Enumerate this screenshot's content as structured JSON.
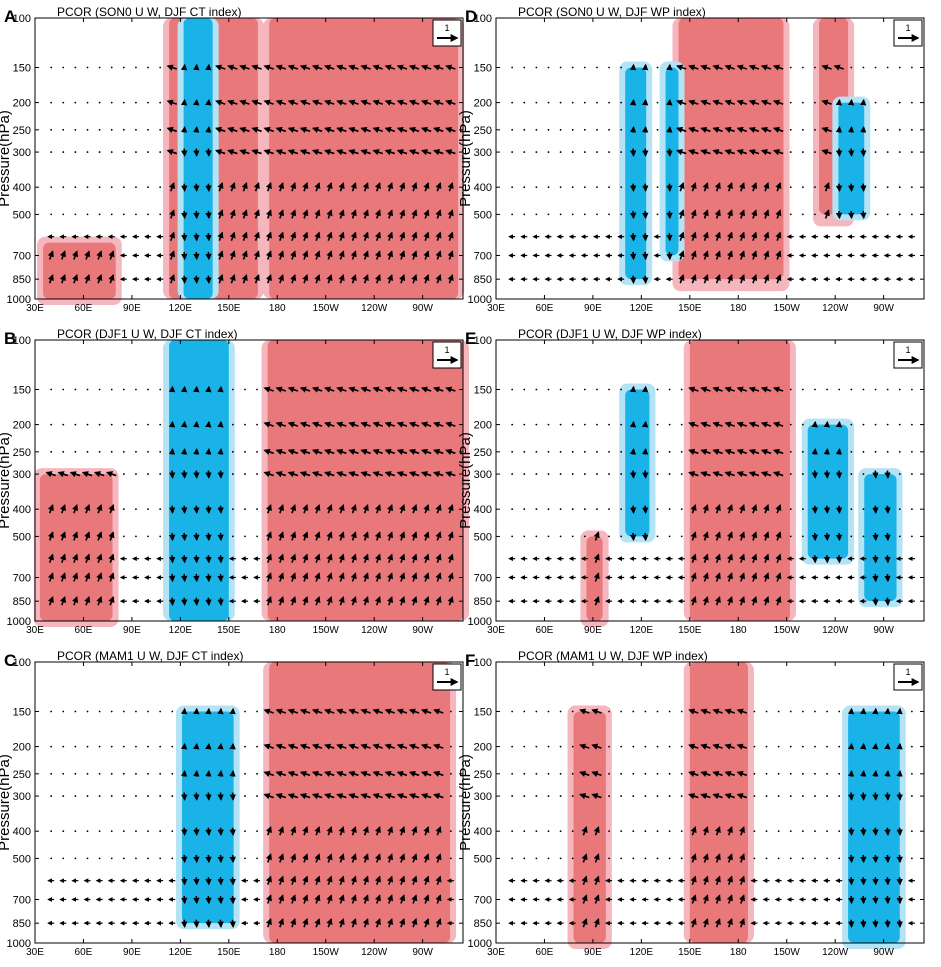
{
  "figure": {
    "colors": {
      "positive_strong": "#e9787b",
      "positive_weak": "#f6b6bd",
      "negative_strong": "#1ab3e8",
      "negative_weak": "#b5e3f6",
      "vector": "#000000"
    },
    "ylabel": "Pressure(hPa)",
    "pressure_ticks": [
      "100",
      "150",
      "200",
      "250",
      "300",
      "400",
      "500",
      "700",
      "850",
      "1000"
    ],
    "lon_ticks": [
      "30E",
      "60E",
      "90E",
      "120E",
      "150E",
      "180",
      "150W",
      "120W",
      "90W"
    ],
    "ref_vector_label": "1",
    "panels": [
      {
        "letter": "A",
        "title": "PCOR (SON0 U W, DJF CT index)",
        "pos": [
          [
            35,
            80,
            1000,
            630
          ],
          [
            113,
            168,
            1000,
            100
          ],
          [
            175,
            292,
            1000,
            100
          ]
        ],
        "neg": [
          [
            122,
            140,
            1000,
            100
          ]
        ]
      },
      {
        "letter": "D",
        "title": "PCOR (SON0 U W, DJF WP index)",
        "pos": [
          [
            143,
            208,
            850,
            100
          ],
          [
            230,
            248,
            500,
            100
          ]
        ],
        "neg": [
          [
            110,
            123,
            850,
            150
          ],
          [
            135,
            143,
            700,
            150
          ],
          [
            242,
            258,
            500,
            200
          ]
        ]
      },
      {
        "letter": "B",
        "title": "PCOR (DJF1 U W, DJF CT index)",
        "pos": [
          [
            33,
            78,
            1000,
            300
          ],
          [
            174,
            295,
            1000,
            100
          ]
        ],
        "neg": [
          [
            113,
            150,
            1000,
            100
          ]
        ]
      },
      {
        "letter": "E",
        "title": "PCOR (DJF1 U W, DJF WP index)",
        "pos": [
          [
            86,
            96,
            1000,
            500
          ],
          [
            150,
            212,
            1000,
            100
          ]
        ],
        "neg": [
          [
            110,
            125,
            500,
            150
          ],
          [
            223,
            248,
            600,
            200
          ],
          [
            258,
            278,
            850,
            300
          ]
        ]
      },
      {
        "letter": "C",
        "title": "PCOR (MAM1 U W, DJF CT index)",
        "pos": [
          [
            175,
            287,
            1000,
            100
          ]
        ],
        "neg": [
          [
            121,
            153,
            850,
            150
          ]
        ]
      },
      {
        "letter": "F",
        "title": "PCOR (MAM1 U W, DJF WP index)",
        "pos": [
          [
            78,
            98,
            1000,
            150
          ],
          [
            150,
            186,
            1000,
            100
          ]
        ],
        "neg": [
          [
            248,
            280,
            1000,
            150
          ]
        ]
      }
    ]
  }
}
